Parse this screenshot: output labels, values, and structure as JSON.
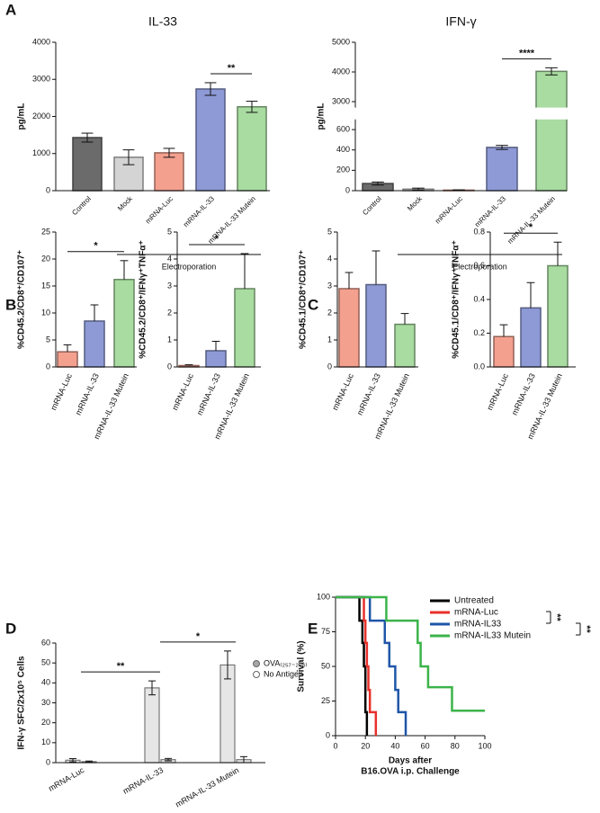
{
  "panel_labels": [
    "A",
    "B",
    "C",
    "D",
    "E"
  ],
  "chart_data": [
    {
      "type": "bar",
      "title": "IL-33",
      "ylabel": "pg/mL",
      "categories": [
        "Control",
        "Mock",
        "mRNA-Luc",
        "mRNA-IL-33",
        "mRNA-IL-33 Mutein"
      ],
      "values": [
        1430,
        900,
        1020,
        2740,
        2260
      ],
      "errors": [
        120,
        200,
        120,
        170,
        150
      ],
      "colors": [
        "#6b6b6b",
        "#d4d4d4",
        "#f4a08f",
        "#8d9ad6",
        "#a8dca0"
      ],
      "ylim": [
        0,
        4000
      ],
      "yticks": [
        0,
        1000,
        2000,
        3000,
        4000
      ],
      "significance": [
        "**"
      ],
      "group_label": "Electroporation"
    },
    {
      "type": "bar",
      "title": "IFN-γ",
      "ylabel": "pg/mL",
      "categories": [
        "Control",
        "Mock",
        "mRNA-Luc",
        "mRNA-IL-33",
        "mRNA-IL-33 Mutein"
      ],
      "values": [
        70,
        15,
        5,
        425,
        4020
      ],
      "errors": [
        15,
        10,
        3,
        20,
        120
      ],
      "colors": [
        "#6b6b6b",
        "#d4d4d4",
        "#f4a08f",
        "#8d9ad6",
        "#a8dca0"
      ],
      "ylim": [
        0,
        5000
      ],
      "yticks": [
        0,
        200,
        400,
        600,
        3000,
        4000,
        5000
      ],
      "axis_break": [
        700,
        2800
      ],
      "significance": [
        "****"
      ],
      "group_label": "Electroporation"
    },
    {
      "type": "bar",
      "ylabel": "%CD45.2/CD8⁺/CD107⁺",
      "categories": [
        "mRNA-Luc",
        "mRNA-IL-33",
        "mRNA-IL-33 Mutein"
      ],
      "values": [
        2.8,
        8.5,
        16.2
      ],
      "errors": [
        1.3,
        3.0,
        3.5
      ],
      "colors": [
        "#f4a08f",
        "#8d9ad6",
        "#a8dca0"
      ],
      "ylim": [
        0,
        25
      ],
      "yticks": [
        0,
        5,
        10,
        15,
        20,
        25
      ],
      "significance": [
        "*"
      ]
    },
    {
      "type": "bar",
      "ylabel": "%CD45.2/CD8⁺/IFNγ⁺TNFα⁺",
      "categories": [
        "mRNA-Luc",
        "mRNA-IL-33",
        "mRNA-IL-33 Mutein"
      ],
      "values": [
        0.05,
        0.6,
        2.9
      ],
      "errors": [
        0.03,
        0.35,
        1.3
      ],
      "colors": [
        "#f4a08f",
        "#8d9ad6",
        "#a8dca0"
      ],
      "ylim": [
        0,
        5
      ],
      "yticks": [
        0,
        1,
        2,
        3,
        4,
        5
      ],
      "significance": [
        "*"
      ]
    },
    {
      "type": "bar",
      "ylabel": "%CD45.1/CD8⁺/CD107⁺",
      "categories": [
        "mRNA-Luc",
        "mRNA-IL-33",
        "mRNA-IL-33 Mutein"
      ],
      "values": [
        2.9,
        3.05,
        1.58
      ],
      "errors": [
        0.6,
        1.25,
        0.4
      ],
      "colors": [
        "#f4a08f",
        "#8d9ad6",
        "#a8dca0"
      ],
      "ylim": [
        0,
        5
      ],
      "yticks": [
        0,
        1,
        2,
        3,
        4,
        5
      ]
    },
    {
      "type": "bar",
      "ylabel": "%CD45.1/CD8⁺/IFNγ⁺TNFα⁺",
      "categories": [
        "mRNA-Luc",
        "mRNA-IL-33",
        "mRNA-IL-33 Mutein"
      ],
      "values": [
        0.18,
        0.35,
        0.6
      ],
      "errors": [
        0.07,
        0.15,
        0.14
      ],
      "colors": [
        "#f4a08f",
        "#8d9ad6",
        "#a8dca0"
      ],
      "ylim": [
        0,
        0.8
      ],
      "yticks": [
        {
          "value": 0,
          "label": "0.0"
        },
        0.2,
        0.4,
        0.6,
        0.8
      ],
      "significance": [
        "*"
      ]
    },
    {
      "type": "grouped_bar",
      "ylabel": "IFN-γ SFC/2x10⁵ Cells",
      "categories": [
        "mRNA-Luc",
        "mRNA-IL-33",
        "mRNA-IL-33 Mutein"
      ],
      "series": [
        {
          "name": "OVA₍₂₅₇₋₂₆₄₎",
          "color": "#a6a6a6",
          "values": [
            1.2,
            37.5,
            49
          ],
          "errors": [
            0.8,
            3.5,
            7
          ]
        },
        {
          "name": "No Antigen",
          "color": "#ffffff",
          "values": [
            0.5,
            1.5,
            1.5
          ],
          "errors": [
            0.3,
            0.6,
            1.5
          ]
        }
      ],
      "ylim": [
        0,
        60
      ],
      "yticks": [
        0,
        10,
        20,
        30,
        40,
        50,
        60
      ],
      "significance": [
        "**",
        "*"
      ]
    },
    {
      "type": "line",
      "ylabel": "Survival (%)",
      "xlabel": [
        "Days after",
        "B16.OVA i.p. Challenge"
      ],
      "series": [
        {
          "name": "Untreated",
          "color": "#000000",
          "x": [
            0,
            16,
            16,
            18,
            18,
            19,
            19,
            20,
            20,
            21,
            21
          ],
          "values": [
            100,
            100,
            83,
            83,
            67,
            67,
            50,
            50,
            17,
            17,
            0
          ]
        },
        {
          "name": "mRNA-Luc",
          "color": "#e8302a",
          "x": [
            0,
            19,
            19,
            20,
            20,
            21,
            21,
            22,
            22,
            23,
            23,
            27,
            27
          ],
          "values": [
            100,
            100,
            83,
            83,
            67,
            67,
            50,
            50,
            33,
            33,
            17,
            17,
            0
          ]
        },
        {
          "name": "mRNA-IL33",
          "color": "#1f56a8",
          "x": [
            0,
            23,
            23,
            33,
            33,
            36,
            36,
            40,
            40,
            42,
            42,
            47,
            47
          ],
          "values": [
            100,
            100,
            83,
            83,
            67,
            67,
            50,
            50,
            33,
            33,
            17,
            17,
            0
          ]
        },
        {
          "name": "mRNA-IL33 Mutein",
          "color": "#3cb44a",
          "x": [
            0,
            34,
            34,
            55,
            55,
            57,
            57,
            62,
            62,
            78,
            78,
            100
          ],
          "values": [
            100,
            100,
            83,
            83,
            67,
            67,
            50,
            50,
            35,
            35,
            18,
            18
          ]
        }
      ],
      "xlim": [
        0,
        100
      ],
      "xticks": [
        0,
        20,
        40,
        60,
        80,
        100
      ],
      "ylim": [
        0,
        100
      ],
      "yticks": [
        0,
        25,
        50,
        75,
        100
      ],
      "significance": [
        "**",
        "**"
      ]
    }
  ]
}
